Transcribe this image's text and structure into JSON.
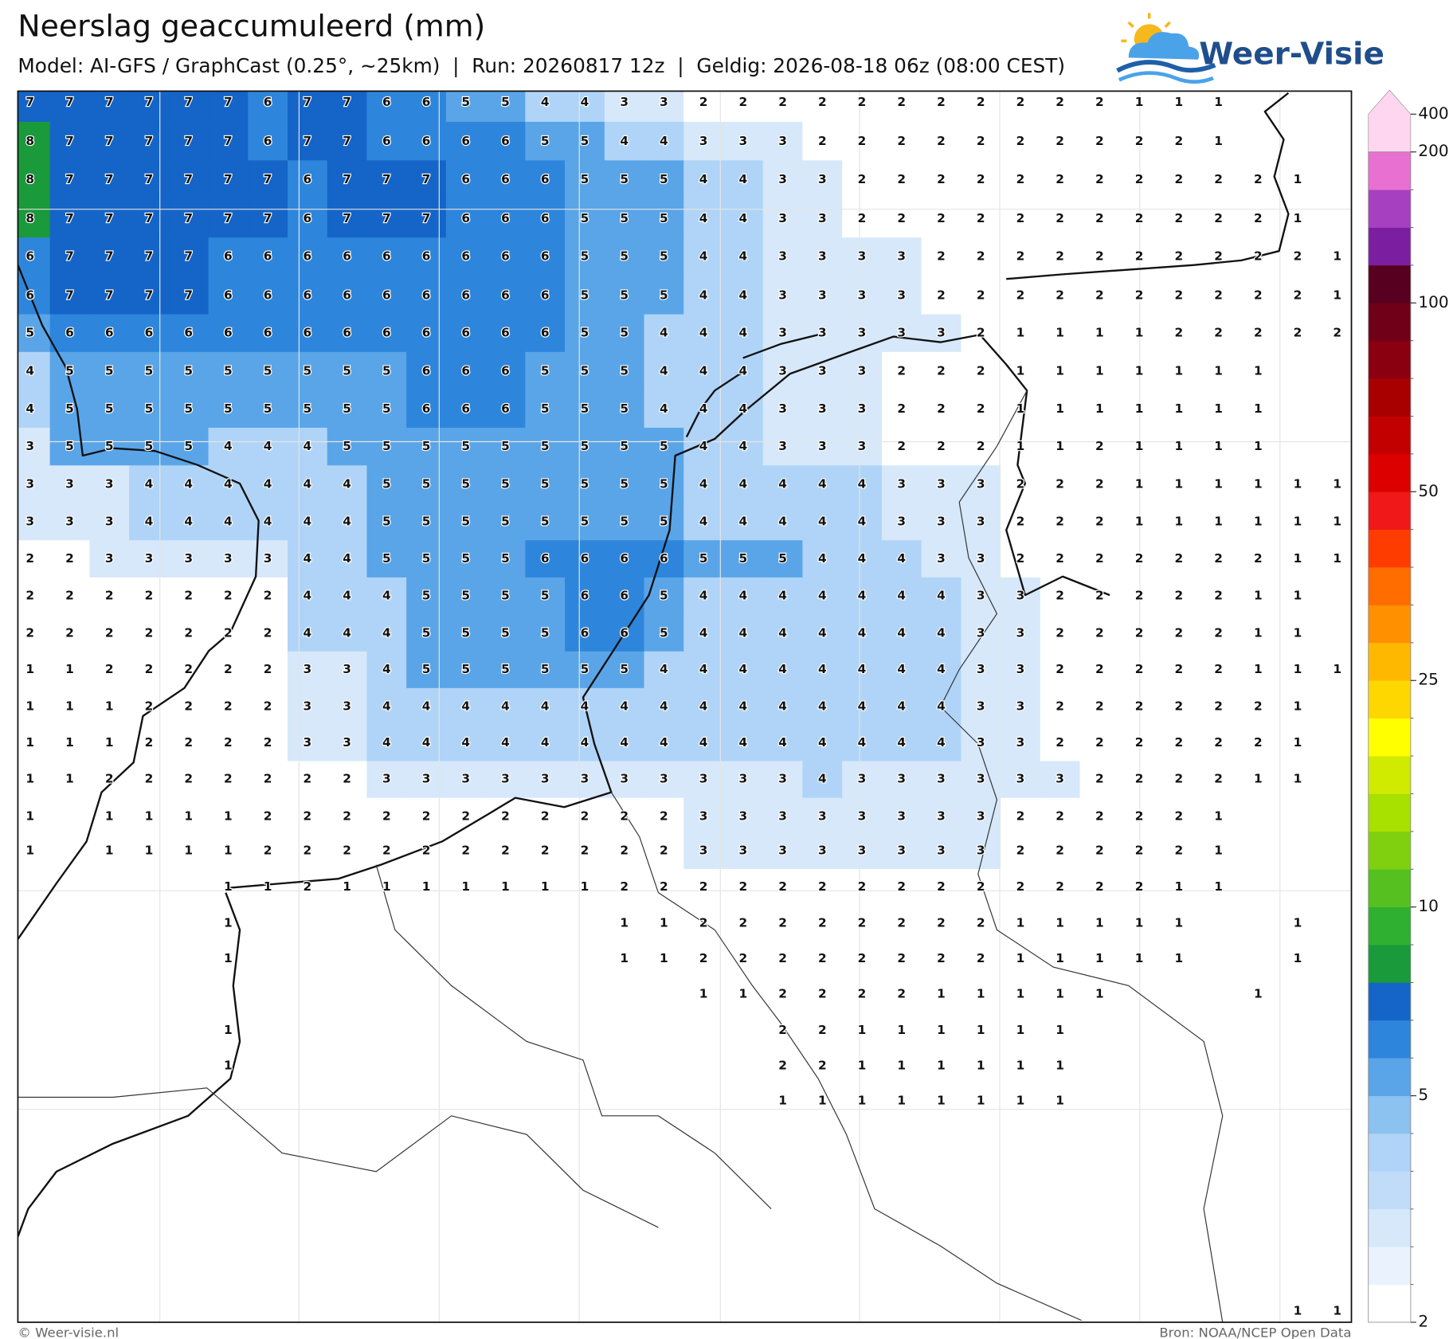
{
  "header": {
    "title": "Neerslag geaccumuleerd (mm)",
    "subtitle": "Model: AI-GFS / GraphCast (0.25°, ~25km)  |  Run: 20260817 12z  |  Geldig: 2026-08-18 06z (08:00 CEST)",
    "logo": "Weer-Visie"
  },
  "map": {
    "grid_values": [
      [
        7,
        7,
        7,
        7,
        7,
        7,
        6,
        7,
        7,
        6,
        6,
        5,
        5,
        4,
        4,
        3,
        3,
        2,
        2,
        2,
        2,
        2,
        2,
        2,
        2,
        2,
        2,
        2,
        1,
        1,
        1,
        null,
        null,
        null
      ],
      [
        8,
        7,
        7,
        7,
        7,
        7,
        6,
        7,
        7,
        6,
        6,
        6,
        6,
        5,
        5,
        4,
        4,
        3,
        3,
        3,
        2,
        2,
        2,
        2,
        2,
        2,
        2,
        2,
        2,
        2,
        1,
        null,
        null,
        null
      ],
      [
        8,
        7,
        7,
        7,
        7,
        7,
        7,
        6,
        7,
        7,
        7,
        6,
        6,
        6,
        5,
        5,
        5,
        4,
        4,
        3,
        3,
        2,
        2,
        2,
        2,
        2,
        2,
        2,
        2,
        2,
        2,
        2,
        1,
        null
      ],
      [
        8,
        7,
        7,
        7,
        7,
        7,
        7,
        6,
        7,
        7,
        7,
        6,
        6,
        6,
        5,
        5,
        5,
        4,
        4,
        3,
        3,
        2,
        2,
        2,
        2,
        2,
        2,
        2,
        2,
        2,
        2,
        2,
        1,
        null
      ],
      [
        6,
        7,
        7,
        7,
        7,
        6,
        6,
        6,
        6,
        6,
        6,
        6,
        6,
        6,
        5,
        5,
        5,
        4,
        4,
        3,
        3,
        3,
        3,
        2,
        2,
        2,
        2,
        2,
        2,
        2,
        2,
        2,
        2,
        1
      ],
      [
        6,
        7,
        7,
        7,
        7,
        6,
        6,
        6,
        6,
        6,
        6,
        6,
        6,
        6,
        5,
        5,
        5,
        4,
        4,
        3,
        3,
        3,
        3,
        2,
        2,
        2,
        2,
        2,
        2,
        2,
        2,
        2,
        2,
        1
      ],
      [
        5,
        6,
        6,
        6,
        6,
        6,
        6,
        6,
        6,
        6,
        6,
        6,
        6,
        6,
        5,
        5,
        4,
        4,
        4,
        3,
        3,
        3,
        3,
        3,
        2,
        1,
        1,
        1,
        1,
        2,
        2,
        2,
        2,
        2
      ],
      [
        4,
        5,
        5,
        5,
        5,
        5,
        5,
        5,
        5,
        5,
        6,
        6,
        6,
        5,
        5,
        5,
        4,
        4,
        4,
        3,
        3,
        3,
        2,
        2,
        2,
        1,
        1,
        1,
        1,
        1,
        1,
        1,
        null,
        null
      ],
      [
        4,
        5,
        5,
        5,
        5,
        5,
        5,
        5,
        5,
        5,
        6,
        6,
        6,
        5,
        5,
        5,
        4,
        4,
        4,
        3,
        3,
        3,
        2,
        2,
        2,
        1,
        1,
        1,
        1,
        1,
        1,
        1,
        null,
        null
      ],
      [
        3,
        5,
        5,
        5,
        5,
        4,
        4,
        4,
        5,
        5,
        5,
        5,
        5,
        5,
        5,
        5,
        5,
        4,
        4,
        3,
        3,
        3,
        2,
        2,
        2,
        1,
        1,
        2,
        1,
        1,
        1,
        1,
        null,
        null
      ],
      [
        3,
        3,
        3,
        4,
        4,
        4,
        4,
        4,
        4,
        5,
        5,
        5,
        5,
        5,
        5,
        5,
        5,
        4,
        4,
        4,
        4,
        4,
        3,
        3,
        3,
        2,
        2,
        2,
        1,
        1,
        1,
        1,
        1,
        1
      ],
      [
        3,
        3,
        3,
        4,
        4,
        4,
        4,
        4,
        4,
        5,
        5,
        5,
        5,
        5,
        5,
        5,
        5,
        4,
        4,
        4,
        4,
        4,
        3,
        3,
        3,
        2,
        2,
        2,
        1,
        1,
        1,
        1,
        1,
        1
      ],
      [
        2,
        2,
        3,
        3,
        3,
        3,
        3,
        4,
        4,
        5,
        5,
        5,
        5,
        6,
        6,
        6,
        6,
        5,
        5,
        5,
        4,
        4,
        4,
        3,
        3,
        2,
        2,
        2,
        2,
        2,
        2,
        2,
        1,
        1
      ],
      [
        2,
        2,
        2,
        2,
        2,
        2,
        2,
        4,
        4,
        4,
        5,
        5,
        5,
        5,
        6,
        6,
        5,
        4,
        4,
        4,
        4,
        4,
        4,
        4,
        3,
        3,
        2,
        2,
        2,
        2,
        2,
        1,
        1,
        null
      ],
      [
        2,
        2,
        2,
        2,
        2,
        2,
        2,
        4,
        4,
        4,
        5,
        5,
        5,
        5,
        6,
        6,
        5,
        4,
        4,
        4,
        4,
        4,
        4,
        4,
        3,
        3,
        2,
        2,
        2,
        2,
        2,
        1,
        1,
        null
      ],
      [
        1,
        1,
        2,
        2,
        2,
        2,
        2,
        3,
        3,
        4,
        5,
        5,
        5,
        5,
        5,
        5,
        4,
        4,
        4,
        4,
        4,
        4,
        4,
        4,
        3,
        3,
        2,
        2,
        2,
        2,
        2,
        1,
        1,
        1
      ],
      [
        1,
        1,
        1,
        2,
        2,
        2,
        2,
        3,
        3,
        4,
        4,
        4,
        4,
        4,
        4,
        4,
        4,
        4,
        4,
        4,
        4,
        4,
        4,
        4,
        3,
        3,
        2,
        2,
        2,
        2,
        2,
        2,
        1,
        null
      ],
      [
        1,
        1,
        1,
        2,
        2,
        2,
        2,
        3,
        3,
        4,
        4,
        4,
        4,
        4,
        4,
        4,
        4,
        4,
        4,
        4,
        4,
        4,
        4,
        4,
        3,
        3,
        2,
        2,
        2,
        2,
        2,
        2,
        1,
        null
      ],
      [
        1,
        1,
        2,
        2,
        2,
        2,
        2,
        2,
        2,
        3,
        3,
        3,
        3,
        3,
        3,
        3,
        3,
        3,
        3,
        3,
        4,
        3,
        3,
        3,
        3,
        3,
        3,
        2,
        2,
        2,
        2,
        1,
        1,
        null
      ],
      [
        1,
        null,
        1,
        1,
        1,
        1,
        2,
        2,
        2,
        2,
        2,
        2,
        2,
        2,
        2,
        2,
        2,
        3,
        3,
        3,
        3,
        3,
        3,
        3,
        3,
        2,
        2,
        2,
        2,
        2,
        1,
        null,
        null,
        null
      ],
      [
        1,
        null,
        1,
        1,
        1,
        1,
        2,
        2,
        2,
        2,
        2,
        2,
        2,
        2,
        2,
        2,
        2,
        3,
        3,
        3,
        3,
        3,
        3,
        3,
        3,
        2,
        2,
        2,
        2,
        2,
        1,
        null,
        null,
        null
      ],
      [
        null,
        null,
        null,
        null,
        null,
        1,
        1,
        2,
        1,
        1,
        1,
        1,
        1,
        1,
        1,
        2,
        2,
        2,
        2,
        2,
        2,
        2,
        2,
        2,
        2,
        2,
        2,
        2,
        2,
        1,
        1,
        null,
        null,
        null
      ],
      [
        null,
        null,
        null,
        null,
        null,
        1,
        null,
        null,
        null,
        null,
        null,
        null,
        null,
        null,
        null,
        1,
        1,
        2,
        2,
        2,
        2,
        2,
        2,
        2,
        2,
        1,
        1,
        1,
        1,
        1,
        null,
        null,
        1,
        null
      ],
      [
        null,
        null,
        null,
        null,
        null,
        1,
        null,
        null,
        null,
        null,
        null,
        null,
        null,
        null,
        null,
        1,
        1,
        2,
        2,
        2,
        2,
        2,
        2,
        2,
        2,
        1,
        1,
        1,
        1,
        1,
        null,
        null,
        1,
        null
      ],
      [
        null,
        null,
        null,
        null,
        null,
        null,
        null,
        null,
        null,
        null,
        null,
        null,
        null,
        null,
        null,
        null,
        null,
        1,
        1,
        2,
        2,
        2,
        2,
        1,
        1,
        1,
        1,
        1,
        null,
        null,
        null,
        1,
        null,
        null
      ],
      [
        null,
        null,
        null,
        null,
        null,
        1,
        null,
        null,
        null,
        null,
        null,
        null,
        null,
        null,
        null,
        null,
        null,
        null,
        null,
        2,
        2,
        1,
        1,
        1,
        1,
        1,
        1,
        null,
        null,
        null,
        null,
        null,
        null,
        null
      ],
      [
        null,
        null,
        null,
        null,
        null,
        1,
        null,
        null,
        null,
        null,
        null,
        null,
        null,
        null,
        null,
        null,
        null,
        null,
        null,
        2,
        2,
        1,
        1,
        1,
        1,
        1,
        1,
        null,
        null,
        null,
        null,
        null,
        null,
        null
      ],
      [
        null,
        null,
        null,
        null,
        null,
        null,
        null,
        null,
        null,
        null,
        null,
        null,
        null,
        null,
        null,
        null,
        null,
        null,
        null,
        1,
        1,
        1,
        1,
        1,
        1,
        1,
        1,
        null,
        null,
        null,
        null,
        null,
        null,
        null
      ],
      [
        null,
        null,
        null,
        null,
        null,
        null,
        null,
        null,
        null,
        null,
        null,
        null,
        null,
        null,
        null,
        null,
        null,
        null,
        null,
        null,
        null,
        null,
        null,
        null,
        null,
        null,
        null,
        null,
        null,
        null,
        null,
        null,
        null,
        null
      ],
      [
        null,
        null,
        null,
        null,
        null,
        null,
        null,
        null,
        null,
        null,
        null,
        null,
        null,
        null,
        null,
        null,
        null,
        null,
        null,
        null,
        null,
        null,
        null,
        null,
        null,
        null,
        null,
        null,
        null,
        null,
        null,
        null,
        null,
        null
      ],
      [
        null,
        null,
        null,
        null,
        null,
        null,
        null,
        null,
        null,
        null,
        null,
        null,
        null,
        null,
        null,
        null,
        null,
        null,
        null,
        null,
        null,
        null,
        null,
        null,
        null,
        null,
        null,
        null,
        null,
        null,
        null,
        null,
        null,
        null
      ],
      [
        null,
        null,
        null,
        null,
        null,
        null,
        null,
        null,
        null,
        null,
        null,
        null,
        null,
        null,
        null,
        null,
        null,
        null,
        null,
        null,
        null,
        null,
        null,
        null,
        null,
        null,
        null,
        null,
        null,
        null,
        null,
        null,
        null,
        null
      ],
      [
        null,
        null,
        null,
        null,
        null,
        null,
        null,
        null,
        null,
        null,
        null,
        null,
        null,
        null,
        null,
        null,
        null,
        null,
        null,
        null,
        null,
        null,
        null,
        null,
        null,
        null,
        null,
        null,
        null,
        null,
        null,
        null,
        null,
        null
      ],
      [
        null,
        null,
        null,
        null,
        null,
        null,
        null,
        null,
        null,
        null,
        null,
        null,
        null,
        null,
        null,
        null,
        null,
        null,
        null,
        null,
        null,
        null,
        null,
        null,
        null,
        null,
        null,
        null,
        null,
        null,
        null,
        null,
        1,
        1
      ]
    ]
  },
  "colorbar": {
    "levels": [
      2,
      2.5,
      3,
      3.5,
      4,
      4.5,
      5,
      6,
      7,
      8,
      9,
      10,
      12,
      14,
      16,
      18,
      20,
      25,
      30,
      35,
      40,
      45,
      50,
      60,
      70,
      80,
      90,
      100,
      125,
      150,
      175,
      200,
      400
    ],
    "colors": [
      "#ffffff",
      "#eaf3fd",
      "#d6e8fa",
      "#c0dcf8",
      "#b0d4f7",
      "#8cc2f0",
      "#5aa5e8",
      "#2e86dc",
      "#1565c8",
      "#1a9a3a",
      "#30b030",
      "#55c020",
      "#80d010",
      "#a8e000",
      "#d0ea00",
      "#ffff00",
      "#ffd700",
      "#ffb800",
      "#ff9000",
      "#ff6c00",
      "#ff3c00",
      "#f01818",
      "#dd0000",
      "#c30000",
      "#a80000",
      "#8b0010",
      "#700018",
      "#58001f",
      "#7b1fa0",
      "#a640c0",
      "#e870d0",
      "#ffd6f0"
    ],
    "ticks": [
      2,
      5,
      10,
      25,
      50,
      100,
      200,
      400
    ]
  },
  "footer": {
    "credit": "© Weer-visie.nl",
    "source": "Bron: NOAA/NCEP Open Data"
  }
}
